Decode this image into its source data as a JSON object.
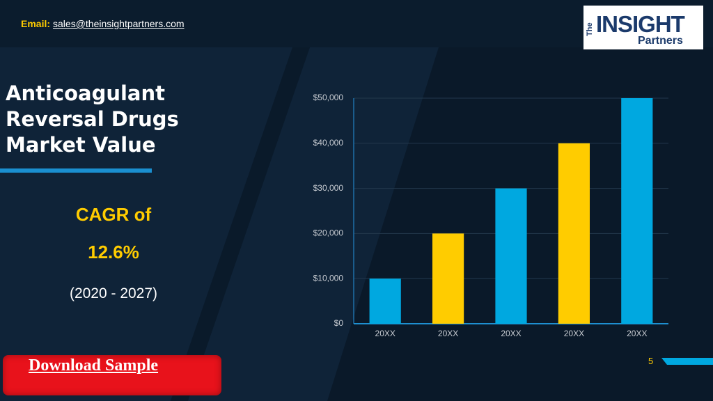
{
  "header": {
    "email_label": "Email:",
    "email": "sales@theinsightpartners.com"
  },
  "logo": {
    "the": "The",
    "brand": "INSIGHT",
    "sub": "Partners"
  },
  "title": "Anticoagulant Reversal Drugs Market Value",
  "cagr_label": "CAGR of",
  "cagr_value": "12.6%",
  "period": "(2020 - 2027)",
  "button": "Download Sample",
  "page_number": "5",
  "chart_data": {
    "type": "bar",
    "categories": [
      "20XX",
      "20XX",
      "20XX",
      "20XX",
      "20XX"
    ],
    "values": [
      10000,
      20000,
      30000,
      40000,
      50000
    ],
    "colors": [
      "#00a8e0",
      "#ffcc00",
      "#00a8e0",
      "#ffcc00",
      "#00a8e0"
    ],
    "ylim": [
      0,
      50000
    ],
    "yticks": [
      {
        "value": 0,
        "label": "$0"
      },
      {
        "value": 10000,
        "label": "$10,000"
      },
      {
        "value": 20000,
        "label": "$20,000"
      },
      {
        "value": 30000,
        "label": "$30,000"
      },
      {
        "value": 40000,
        "label": "$40,000"
      },
      {
        "value": 50000,
        "label": "$50,000"
      }
    ],
    "grid": true
  }
}
